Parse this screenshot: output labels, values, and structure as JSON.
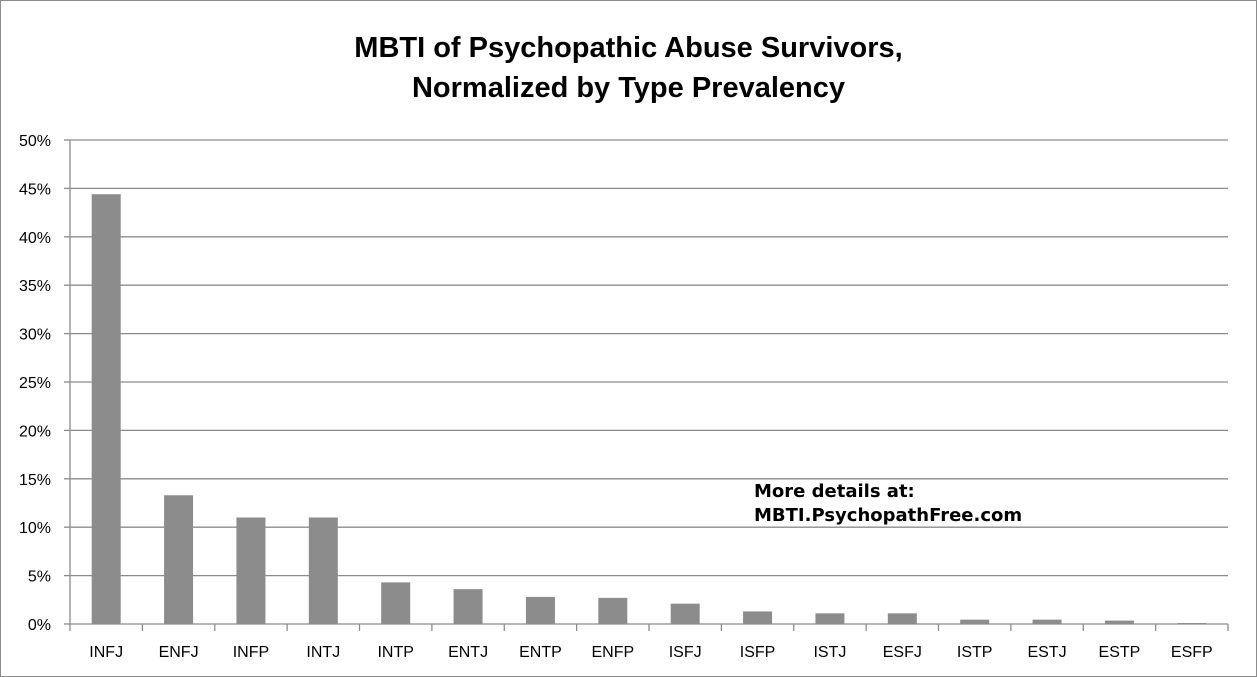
{
  "chart_data": {
    "type": "bar",
    "title_lines": [
      "MBTI of Psychopathic Abuse Survivors,",
      "Normalized by Type Prevalency"
    ],
    "xlabel": "",
    "ylabel": "",
    "categories": [
      "INFJ",
      "ENFJ",
      "INFP",
      "INTJ",
      "INTP",
      "ENTJ",
      "ENTP",
      "ENFP",
      "ISFJ",
      "ISFP",
      "ISTJ",
      "ESFJ",
      "ISTP",
      "ESTJ",
      "ESTP",
      "ESFP"
    ],
    "values": [
      44.4,
      13.3,
      11.0,
      11.0,
      4.3,
      3.6,
      2.8,
      2.7,
      2.1,
      1.3,
      1.1,
      1.1,
      0.45,
      0.45,
      0.35,
      0.1
    ],
    "value_unit": "%",
    "ylim": [
      0,
      50
    ],
    "ytick_step": 5,
    "ytick_labels": [
      "0%",
      "5%",
      "10%",
      "15%",
      "20%",
      "25%",
      "30%",
      "35%",
      "40%",
      "45%",
      "50%"
    ],
    "grid": true,
    "legend": "none",
    "bar_color": "#8c8c8c",
    "grid_color": "#8c8c8c",
    "annotation_lines": [
      "More details at:",
      "MBTI.PsychopathFree.com"
    ]
  }
}
